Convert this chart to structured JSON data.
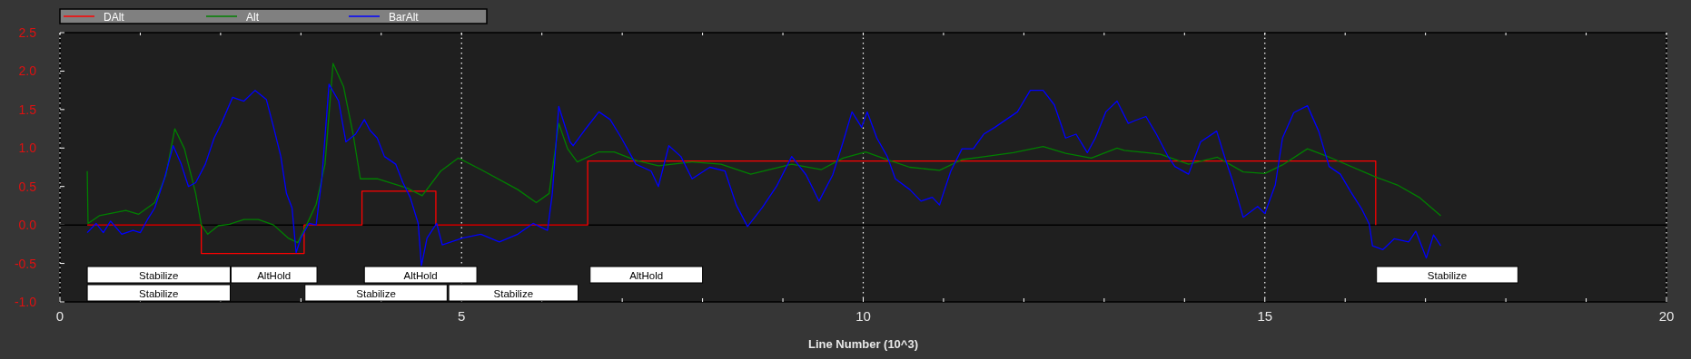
{
  "chart_data": {
    "type": "line",
    "xlabel": "Line Number (10^3)",
    "legend": "top left",
    "grid": "x",
    "xlim": [
      0,
      20
    ],
    "xticks": [
      0,
      {
        "value": 1,
        "label": null
      },
      {
        "value": 2,
        "label": null
      },
      {
        "value": 3,
        "label": null
      },
      {
        "value": 4,
        "label": null
      },
      5,
      {
        "value": 6,
        "label": null
      },
      {
        "value": 7,
        "label": null
      },
      {
        "value": 8,
        "label": null
      },
      {
        "value": 9,
        "label": null
      },
      10,
      {
        "value": 11,
        "label": null
      },
      {
        "value": 12,
        "label": null
      },
      {
        "value": 13,
        "label": null
      },
      {
        "value": 14,
        "label": null
      },
      15,
      {
        "value": 16,
        "label": null
      },
      {
        "value": 17,
        "label": null
      },
      {
        "value": 18,
        "label": null
      },
      {
        "value": 19,
        "label": null
      },
      20
    ],
    "ylim": [
      -1,
      2.5
    ],
    "yticks": [
      {
        "value": -1,
        "label": "-1.0"
      },
      {
        "value": -0.5,
        "label": "-0.5"
      },
      {
        "value": 0,
        "label": "0.0"
      },
      0.5,
      {
        "value": 1,
        "label": "1.0"
      },
      1.5,
      {
        "value": 2,
        "label": "2.0"
      },
      2.5
    ],
    "ref_lines": [
      {
        "axis": "y",
        "value": 0,
        "color": "#000000"
      }
    ],
    "bands": [
      {
        "axis": "x",
        "from": 0.34,
        "to": 2.12,
        "label": "Stabilize",
        "color": "#ffffff"
      },
      {
        "axis": "x",
        "from": 2.13,
        "to": 3.2,
        "label": "AltHold",
        "color": "#ffffff"
      },
      {
        "axis": "x",
        "from": 3.79,
        "to": 5.19,
        "label": "AltHold",
        "color": "#ffffff"
      },
      {
        "axis": "x",
        "from": 6.6,
        "to": 8.0,
        "label": "AltHold",
        "color": "#ffffff"
      },
      {
        "axis": "x",
        "from": 0.34,
        "to": 2.12,
        "label": "Stabilize",
        "color": "#ffffff"
      },
      {
        "axis": "x",
        "from": 3.05,
        "to": 4.82,
        "label": "Stabilize",
        "color": "#ffffff"
      },
      {
        "axis": "x",
        "from": 4.84,
        "to": 6.45,
        "label": "Stabilize",
        "color": "#ffffff"
      },
      {
        "axis": "x",
        "from": 16.39,
        "to": 18.15,
        "label": "Stabilize",
        "color": "#ffffff"
      }
    ],
    "series": [
      {
        "name": "DAlt",
        "type": "step",
        "color": "#ff0000",
        "x": [
          0.34,
          1.76,
          3.04,
          3.76,
          4.68,
          6.57,
          16.38
        ],
        "values": [
          0,
          -0.37,
          0,
          0.44,
          0,
          0.83,
          0
        ]
      },
      {
        "name": "Alt",
        "color": "#008000",
        "x": [
          0.34,
          0.35,
          0.49,
          0.82,
          0.98,
          1.18,
          1.32,
          1.43,
          1.55,
          1.69,
          1.76,
          1.84,
          1.97,
          2.11,
          2.29,
          2.47,
          2.66,
          2.84,
          2.96,
          3.07,
          3.19,
          3.3,
          3.4,
          3.53,
          3.65,
          3.74,
          3.95,
          4.32,
          4.51,
          4.74,
          4.96,
          5.24,
          5.7,
          5.93,
          6.09,
          6.21,
          6.32,
          6.44,
          6.71,
          6.9,
          7.17,
          7.45,
          7.87,
          8.23,
          8.6,
          9.11,
          9.48,
          9.75,
          10.03,
          10.3,
          10.58,
          10.95,
          11.23,
          11.46,
          11.87,
          12.24,
          12.52,
          12.84,
          13.16,
          13.25,
          13.7,
          14.05,
          14.41,
          14.73,
          15.0,
          15.22,
          15.53,
          15.76,
          16.39,
          16.65,
          16.92,
          17.19
        ],
        "values": [
          0.7,
          0.02,
          0.12,
          0.19,
          0.14,
          0.29,
          0.65,
          1.25,
          0.99,
          0.41,
          0.0,
          -0.12,
          -0.01,
          0.01,
          0.07,
          0.07,
          0,
          -0.17,
          -0.23,
          0,
          0.27,
          0.79,
          2.1,
          1.8,
          1.18,
          0.6,
          0.6,
          0.48,
          0.38,
          0.7,
          0.87,
          0.72,
          0.46,
          0.29,
          0.41,
          1.32,
          0.99,
          0.82,
          0.95,
          0.95,
          0.84,
          0.77,
          0.82,
          0.79,
          0.66,
          0.79,
          0.72,
          0.87,
          0.95,
          0.85,
          0.75,
          0.71,
          0.85,
          0.88,
          0.94,
          1.02,
          0.93,
          0.87,
          1.0,
          0.97,
          0.92,
          0.79,
          0.88,
          0.69,
          0.67,
          0.78,
          0.99,
          0.9,
          0.62,
          0.52,
          0.36,
          0.12
        ]
      },
      {
        "name": "BarAlt",
        "color": "#0000ff",
        "x": [
          0.34,
          0.45,
          0.54,
          0.63,
          0.77,
          0.91,
          1.0,
          1.09,
          1.18,
          1.3,
          1.41,
          1.51,
          1.6,
          1.69,
          1.81,
          1.92,
          2.01,
          2.15,
          2.29,
          2.43,
          2.57,
          2.66,
          2.75,
          2.82,
          2.89,
          2.94,
          3.0,
          3.1,
          3.19,
          3.26,
          3.35,
          3.47,
          3.56,
          3.68,
          3.79,
          3.86,
          3.95,
          4.04,
          4.18,
          4.27,
          4.36,
          4.46,
          4.5,
          4.57,
          4.69,
          4.76,
          5.01,
          5.24,
          5.47,
          5.7,
          5.89,
          6.07,
          6.13,
          6.21,
          6.35,
          6.39,
          6.53,
          6.71,
          6.85,
          6.99,
          7.17,
          7.36,
          7.45,
          7.58,
          7.73,
          7.87,
          8.09,
          8.28,
          8.42,
          8.56,
          8.74,
          8.92,
          9.11,
          9.29,
          9.45,
          9.62,
          9.75,
          9.86,
          9.98,
          10.05,
          10.17,
          10.3,
          10.4,
          10.58,
          10.72,
          10.86,
          10.95,
          11.09,
          11.23,
          11.37,
          11.5,
          11.64,
          11.78,
          11.92,
          12.08,
          12.24,
          12.38,
          12.52,
          12.65,
          12.79,
          12.89,
          13.02,
          13.16,
          13.3,
          13.39,
          13.52,
          13.65,
          13.79,
          13.88,
          14.05,
          14.2,
          14.4,
          14.51,
          14.6,
          14.73,
          14.91,
          15.0,
          15.13,
          15.22,
          15.36,
          15.53,
          15.67,
          15.8,
          15.94,
          16.07,
          16.21,
          16.3,
          16.34,
          16.47,
          16.61,
          16.79,
          16.88,
          17.01,
          17.1,
          17.19
        ],
        "values": [
          -0.1,
          0.02,
          -0.1,
          0.05,
          -0.12,
          -0.07,
          -0.1,
          0.07,
          0.22,
          0.6,
          1.03,
          0.79,
          0.5,
          0.55,
          0.79,
          1.13,
          1.32,
          1.66,
          1.61,
          1.75,
          1.63,
          1.27,
          0.89,
          0.41,
          0.22,
          -0.36,
          -0.17,
          0.02,
          0,
          0.6,
          1.83,
          1.61,
          1.08,
          1.18,
          1.37,
          1.23,
          1.13,
          0.89,
          0.79,
          0.55,
          0.36,
          0.02,
          -0.53,
          -0.17,
          0.02,
          -0.26,
          -0.17,
          -0.12,
          -0.22,
          -0.12,
          0.02,
          -0.07,
          0.41,
          1.54,
          1.08,
          1.03,
          1.23,
          1.47,
          1.37,
          1.13,
          0.79,
          0.7,
          0.5,
          1.03,
          0.89,
          0.6,
          0.75,
          0.7,
          0.26,
          -0.02,
          0.22,
          0.5,
          0.89,
          0.65,
          0.31,
          0.65,
          1.08,
          1.47,
          1.27,
          1.47,
          1.13,
          0.89,
          0.6,
          0.46,
          0.31,
          0.36,
          0.26,
          0.7,
          0.99,
          0.99,
          1.18,
          1.27,
          1.37,
          1.47,
          1.75,
          1.75,
          1.56,
          1.13,
          1.18,
          0.94,
          1.13,
          1.47,
          1.61,
          1.32,
          1.36,
          1.41,
          1.18,
          0.9,
          0.76,
          0.66,
          1.08,
          1.22,
          0.85,
          0.57,
          0.1,
          0.24,
          0.15,
          0.52,
          1.13,
          1.46,
          1.55,
          1.22,
          0.76,
          0.66,
          0.43,
          0.2,
          0.01,
          -0.27,
          -0.32,
          -0.18,
          -0.22,
          -0.08,
          -0.43,
          -0.13,
          -0.27
        ]
      }
    ]
  }
}
